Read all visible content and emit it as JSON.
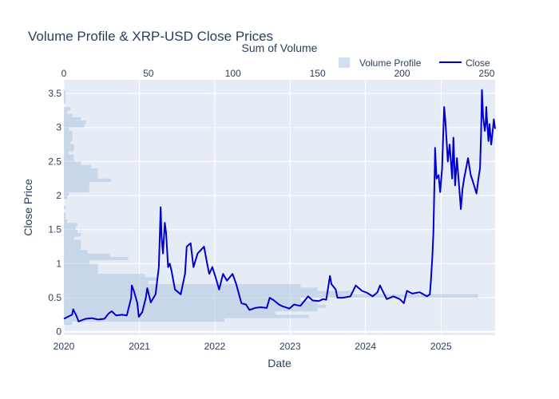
{
  "chart_data": {
    "type": "line",
    "title": "Volume Profile & XRP-USD Close Prices",
    "xlabel": "Date",
    "ylabel": "Close Price",
    "x2label": "Sum of Volume",
    "xlim": [
      "2020-01-01",
      "2025-09-20"
    ],
    "ylim": [
      -0.05,
      3.7
    ],
    "x2lim": [
      0,
      255
    ],
    "x_ticks": [
      "2020",
      "2021",
      "2022",
      "2023",
      "2024",
      "2025"
    ],
    "x_tick_dates": [
      "2020-01-01",
      "2021-01-01",
      "2022-01-01",
      "2023-01-01",
      "2024-01-01",
      "2025-01-01"
    ],
    "y_ticks": [
      0,
      0.5,
      1,
      1.5,
      2,
      2.5,
      3,
      3.5
    ],
    "y_tick_labels": [
      "0",
      "0.5",
      "1",
      "1.5",
      "2",
      "2.5",
      "3",
      "3.5"
    ],
    "x2_ticks": [
      0,
      50,
      100,
      150,
      200,
      250
    ],
    "x2_tick_labels": [
      "0",
      "50",
      "100",
      "150",
      "200",
      "250"
    ],
    "grid": true,
    "legend_position": "top-right",
    "series": [
      {
        "name": "Volume Profile",
        "type": "horizontal-bar",
        "color": "#b0c4de",
        "bin_width": 0.05,
        "bins": [
          [
            0.125,
            5
          ],
          [
            0.175,
            95
          ],
          [
            0.225,
            145
          ],
          [
            0.275,
            125
          ],
          [
            0.325,
            150
          ],
          [
            0.375,
            155
          ],
          [
            0.425,
            150
          ],
          [
            0.475,
            140
          ],
          [
            0.525,
            245
          ],
          [
            0.575,
            170
          ],
          [
            0.625,
            150
          ],
          [
            0.675,
            140
          ],
          [
            0.725,
            50
          ],
          [
            0.775,
            55
          ],
          [
            0.825,
            48
          ],
          [
            0.875,
            20
          ],
          [
            0.925,
            20
          ],
          [
            0.975,
            20
          ],
          [
            1.025,
            15
          ],
          [
            1.075,
            38
          ],
          [
            1.125,
            27
          ],
          [
            1.175,
            14
          ],
          [
            1.225,
            10
          ],
          [
            1.275,
            10
          ],
          [
            1.325,
            10
          ],
          [
            1.375,
            6
          ],
          [
            1.425,
            10
          ],
          [
            1.475,
            8
          ],
          [
            1.525,
            7
          ],
          [
            1.575,
            8
          ],
          [
            1.625,
            2
          ],
          [
            1.675,
            1
          ],
          [
            1.725,
            1
          ],
          [
            1.825,
            1
          ],
          [
            1.975,
            2
          ],
          [
            2.025,
            3
          ],
          [
            2.075,
            15
          ],
          [
            2.125,
            15
          ],
          [
            2.175,
            15
          ],
          [
            2.225,
            28
          ],
          [
            2.275,
            20
          ],
          [
            2.325,
            20
          ],
          [
            2.375,
            20
          ],
          [
            2.425,
            16
          ],
          [
            2.475,
            10
          ],
          [
            2.525,
            6
          ],
          [
            2.575,
            6
          ],
          [
            2.625,
            3
          ],
          [
            2.675,
            6
          ],
          [
            2.725,
            6
          ],
          [
            2.775,
            4
          ],
          [
            2.825,
            5
          ],
          [
            2.875,
            5
          ],
          [
            2.925,
            5
          ],
          [
            2.975,
            3
          ],
          [
            3.025,
            12
          ],
          [
            3.075,
            13
          ],
          [
            3.125,
            10
          ],
          [
            3.175,
            5
          ],
          [
            3.225,
            2
          ],
          [
            3.275,
            4
          ],
          [
            3.375,
            1
          ],
          [
            3.425,
            1
          ],
          [
            3.475,
            1
          ],
          [
            3.525,
            1
          ]
        ]
      },
      {
        "name": "Close",
        "type": "line",
        "color": "#0000cd",
        "points": [
          [
            "2020-01-01",
            0.19
          ],
          [
            "2020-01-20",
            0.22
          ],
          [
            "2020-02-10",
            0.25
          ],
          [
            "2020-02-15",
            0.33
          ],
          [
            "2020-03-01",
            0.24
          ],
          [
            "2020-03-12",
            0.15
          ],
          [
            "2020-03-20",
            0.16
          ],
          [
            "2020-04-15",
            0.19
          ],
          [
            "2020-05-15",
            0.2
          ],
          [
            "2020-06-15",
            0.18
          ],
          [
            "2020-07-15",
            0.19
          ],
          [
            "2020-08-05",
            0.27
          ],
          [
            "2020-08-20",
            0.3
          ],
          [
            "2020-09-10",
            0.24
          ],
          [
            "2020-10-10",
            0.25
          ],
          [
            "2020-11-01",
            0.24
          ],
          [
            "2020-11-22",
            0.5
          ],
          [
            "2020-11-25",
            0.68
          ],
          [
            "2020-12-05",
            0.6
          ],
          [
            "2020-12-22",
            0.42
          ],
          [
            "2020-12-29",
            0.22
          ],
          [
            "2021-01-15",
            0.29
          ],
          [
            "2021-02-01",
            0.5
          ],
          [
            "2021-02-08",
            0.64
          ],
          [
            "2021-02-25",
            0.43
          ],
          [
            "2021-03-20",
            0.55
          ],
          [
            "2021-04-05",
            0.95
          ],
          [
            "2021-04-14",
            1.83
          ],
          [
            "2021-04-18",
            1.4
          ],
          [
            "2021-04-25",
            1.15
          ],
          [
            "2021-05-04",
            1.6
          ],
          [
            "2021-05-10",
            1.45
          ],
          [
            "2021-05-20",
            0.95
          ],
          [
            "2021-05-28",
            1.0
          ],
          [
            "2021-06-05",
            0.9
          ],
          [
            "2021-06-22",
            0.62
          ],
          [
            "2021-07-20",
            0.55
          ],
          [
            "2021-08-10",
            0.85
          ],
          [
            "2021-08-18",
            1.25
          ],
          [
            "2021-09-06",
            1.3
          ],
          [
            "2021-09-20",
            0.95
          ],
          [
            "2021-10-10",
            1.15
          ],
          [
            "2021-11-10",
            1.25
          ],
          [
            "2021-11-25",
            1.0
          ],
          [
            "2021-12-05",
            0.85
          ],
          [
            "2021-12-20",
            0.95
          ],
          [
            "2022-01-05",
            0.8
          ],
          [
            "2022-01-22",
            0.62
          ],
          [
            "2022-02-10",
            0.85
          ],
          [
            "2022-03-01",
            0.75
          ],
          [
            "2022-03-28",
            0.85
          ],
          [
            "2022-04-15",
            0.7
          ],
          [
            "2022-05-10",
            0.42
          ],
          [
            "2022-06-01",
            0.4
          ],
          [
            "2022-06-18",
            0.32
          ],
          [
            "2022-07-15",
            0.35
          ],
          [
            "2022-08-10",
            0.36
          ],
          [
            "2022-09-10",
            0.35
          ],
          [
            "2022-09-24",
            0.5
          ],
          [
            "2022-10-15",
            0.46
          ],
          [
            "2022-11-08",
            0.4
          ],
          [
            "2022-11-20",
            0.38
          ],
          [
            "2022-12-28",
            0.34
          ],
          [
            "2023-01-20",
            0.4
          ],
          [
            "2023-02-20",
            0.38
          ],
          [
            "2023-03-29",
            0.52
          ],
          [
            "2023-04-20",
            0.46
          ],
          [
            "2023-05-20",
            0.45
          ],
          [
            "2023-06-10",
            0.48
          ],
          [
            "2023-06-25",
            0.47
          ],
          [
            "2023-07-13",
            0.82
          ],
          [
            "2023-07-20",
            0.7
          ],
          [
            "2023-08-10",
            0.62
          ],
          [
            "2023-08-18",
            0.5
          ],
          [
            "2023-09-15",
            0.5
          ],
          [
            "2023-10-20",
            0.52
          ],
          [
            "2023-11-15",
            0.68
          ],
          [
            "2023-12-15",
            0.6
          ],
          [
            "2024-01-10",
            0.57
          ],
          [
            "2024-02-05",
            0.52
          ],
          [
            "2024-02-28",
            0.58
          ],
          [
            "2024-03-11",
            0.68
          ],
          [
            "2024-04-13",
            0.48
          ],
          [
            "2024-05-15",
            0.52
          ],
          [
            "2024-06-15",
            0.48
          ],
          [
            "2024-07-05",
            0.42
          ],
          [
            "2024-07-20",
            0.6
          ],
          [
            "2024-08-15",
            0.56
          ],
          [
            "2024-09-20",
            0.58
          ],
          [
            "2024-10-25",
            0.52
          ],
          [
            "2024-11-08",
            0.55
          ],
          [
            "2024-11-13",
            0.75
          ],
          [
            "2024-11-20",
            1.1
          ],
          [
            "2024-11-25",
            1.45
          ],
          [
            "2024-12-02",
            2.45
          ],
          [
            "2024-12-03",
            2.7
          ],
          [
            "2024-12-10",
            2.25
          ],
          [
            "2024-12-20",
            2.3
          ],
          [
            "2024-12-28",
            2.05
          ],
          [
            "2025-01-06",
            2.4
          ],
          [
            "2025-01-16",
            3.3
          ],
          [
            "2025-01-22",
            3.1
          ],
          [
            "2025-01-27",
            2.85
          ],
          [
            "2025-02-03",
            2.5
          ],
          [
            "2025-02-12",
            2.75
          ],
          [
            "2025-02-24",
            2.25
          ],
          [
            "2025-03-02",
            2.85
          ],
          [
            "2025-03-10",
            2.15
          ],
          [
            "2025-03-19",
            2.55
          ],
          [
            "2025-04-07",
            1.8
          ],
          [
            "2025-04-15",
            2.1
          ],
          [
            "2025-04-23",
            2.25
          ],
          [
            "2025-05-12",
            2.55
          ],
          [
            "2025-05-25",
            2.3
          ],
          [
            "2025-06-05",
            2.2
          ],
          [
            "2025-06-22",
            2.03
          ],
          [
            "2025-07-01",
            2.25
          ],
          [
            "2025-07-09",
            2.4
          ],
          [
            "2025-07-14",
            2.9
          ],
          [
            "2025-07-18",
            3.55
          ],
          [
            "2025-07-24",
            3.15
          ],
          [
            "2025-08-01",
            2.95
          ],
          [
            "2025-08-05",
            3.05
          ],
          [
            "2025-08-08",
            3.3
          ],
          [
            "2025-08-12",
            3.1
          ],
          [
            "2025-08-19",
            2.8
          ],
          [
            "2025-08-24",
            3.05
          ],
          [
            "2025-09-01",
            2.75
          ],
          [
            "2025-09-05",
            2.85
          ],
          [
            "2025-09-10",
            3.0
          ],
          [
            "2025-09-14",
            3.12
          ],
          [
            "2025-09-20",
            2.98
          ]
        ]
      }
    ]
  }
}
